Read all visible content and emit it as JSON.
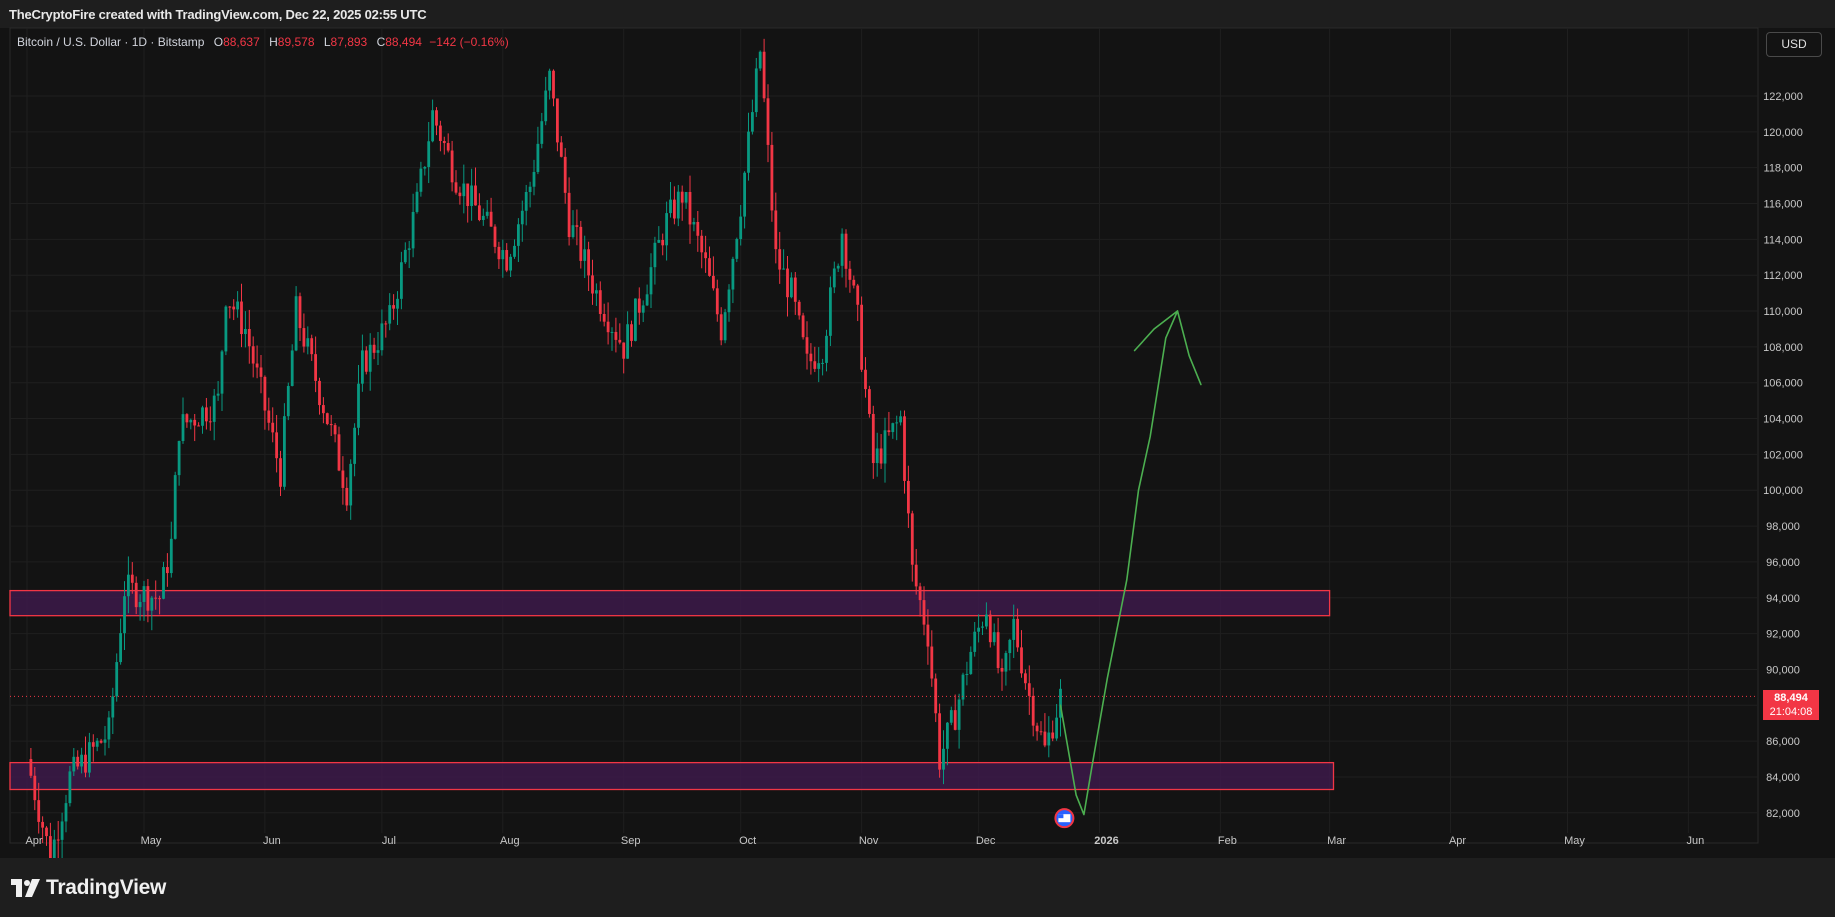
{
  "header": {
    "title": "TheCryptoFire created with TradingView.com, Dec 22, 2025 02:55 UTC"
  },
  "legend": {
    "symbol": "Bitcoin / U.S. Dollar · 1D · Bitstamp",
    "o_label": "O",
    "o": "88,637",
    "h_label": "H",
    "h": "89,578",
    "l_label": "L",
    "l": "87,893",
    "c_label": "C",
    "c": "88,494",
    "change": "−142 (−0.16%)"
  },
  "currency_button": "USD",
  "price_tag": {
    "price": "88,494",
    "countdown": "21:04:08"
  },
  "branding": {
    "logo_text": "TradingView"
  },
  "colors": {
    "up": "#089981",
    "down": "#f23645",
    "zone_fill": "#3d1a4a",
    "zone_border": "#f23645",
    "drawing": "#4caf50",
    "background": "#131313"
  },
  "chart_data": {
    "type": "candlestick",
    "timeframe": "1D",
    "x_tick_labels": [
      "Apr",
      "May",
      "Jun",
      "Jul",
      "Aug",
      "Sep",
      "Oct",
      "Nov",
      "Dec",
      "2026",
      "Feb",
      "Mar",
      "Apr",
      "May",
      "Jun"
    ],
    "y_tick_labels": [
      "82,000",
      "84,000",
      "86,000",
      "88,000",
      "90,000",
      "92,000",
      "94,000",
      "96,000",
      "98,000",
      "100,000",
      "102,000",
      "104,000",
      "106,000",
      "108,000",
      "110,000",
      "112,000",
      "114,000",
      "116,000",
      "118,000",
      "120,000",
      "122,000"
    ],
    "y_ticks": [
      82000,
      84000,
      86000,
      88000,
      90000,
      92000,
      94000,
      96000,
      98000,
      100000,
      102000,
      104000,
      106000,
      108000,
      110000,
      112000,
      114000,
      116000,
      118000,
      120000,
      122000
    ],
    "ylim": [
      81200,
      124500
    ],
    "last_price": 88494,
    "close_path": [
      [
        "2025-04-01",
        85000
      ],
      [
        "2025-04-07",
        79500
      ],
      [
        "2025-04-12",
        84000
      ],
      [
        "2025-04-22",
        86500
      ],
      [
        "2025-04-26",
        94500
      ],
      [
        "2025-05-05",
        94000
      ],
      [
        "2025-05-08",
        97000
      ],
      [
        "2025-05-10",
        103500
      ],
      [
        "2025-05-20",
        105000
      ],
      [
        "2025-05-22",
        111000
      ],
      [
        "2025-05-27",
        109000
      ],
      [
        "2025-06-05",
        101000
      ],
      [
        "2025-06-09",
        110000
      ],
      [
        "2025-06-17",
        104000
      ],
      [
        "2025-06-22",
        100000
      ],
      [
        "2025-06-26",
        107000
      ],
      [
        "2025-07-03",
        109500
      ],
      [
        "2025-07-10",
        116000
      ],
      [
        "2025-07-14",
        121000
      ],
      [
        "2025-07-20",
        117500
      ],
      [
        "2025-08-02",
        113000
      ],
      [
        "2025-08-08",
        117000
      ],
      [
        "2025-08-13",
        123000
      ],
      [
        "2025-08-18",
        115000
      ],
      [
        "2025-08-25",
        111000
      ],
      [
        "2025-09-01",
        108000
      ],
      [
        "2025-09-06",
        111000
      ],
      [
        "2025-09-12",
        115000
      ],
      [
        "2025-09-16",
        116500
      ],
      [
        "2025-09-22",
        112500
      ],
      [
        "2025-09-26",
        109000
      ],
      [
        "2025-10-01",
        116000
      ],
      [
        "2025-10-06",
        124500
      ],
      [
        "2025-10-10",
        113000
      ],
      [
        "2025-10-14",
        111000
      ],
      [
        "2025-10-18",
        107000
      ],
      [
        "2025-10-22",
        108000
      ],
      [
        "2025-10-27",
        114500
      ],
      [
        "2025-10-31",
        109500
      ],
      [
        "2025-11-04",
        101500
      ],
      [
        "2025-11-11",
        104000
      ],
      [
        "2025-11-14",
        95500
      ],
      [
        "2025-11-18",
        92000
      ],
      [
        "2025-11-21",
        85000
      ],
      [
        "2025-11-25",
        87500
      ],
      [
        "2025-11-29",
        91000
      ],
      [
        "2025-12-03",
        93500
      ],
      [
        "2025-12-07",
        89000
      ],
      [
        "2025-12-10",
        92500
      ],
      [
        "2025-12-14",
        88500
      ],
      [
        "2025-12-18",
        85500
      ],
      [
        "2025-12-22",
        88494
      ]
    ],
    "zones": [
      {
        "y_low": 93000,
        "y_high": 94400,
        "x_end": "2026-03-01"
      },
      {
        "y_low": 83300,
        "y_high": 84800,
        "x_end": "2026-03-02"
      }
    ],
    "projection": [
      [
        "2025-12-22",
        88000
      ],
      [
        "2025-12-26",
        83000
      ],
      [
        "2025-12-28",
        81900
      ],
      [
        "2025-12-30",
        84500
      ],
      [
        "2026-01-03",
        89500
      ],
      [
        "2026-01-08",
        95000
      ],
      [
        "2026-01-11",
        100000
      ],
      [
        "2026-01-14",
        103000
      ],
      [
        "2026-01-18",
        108500
      ],
      [
        "2026-01-21",
        110000
      ],
      [
        "2026-01-24",
        107500
      ],
      [
        "2026-01-27",
        105900
      ]
    ],
    "projection_tail": [
      [
        "2026-01-10",
        107800
      ],
      [
        "2026-01-15",
        109000
      ],
      [
        "2026-01-21",
        110000
      ]
    ]
  }
}
